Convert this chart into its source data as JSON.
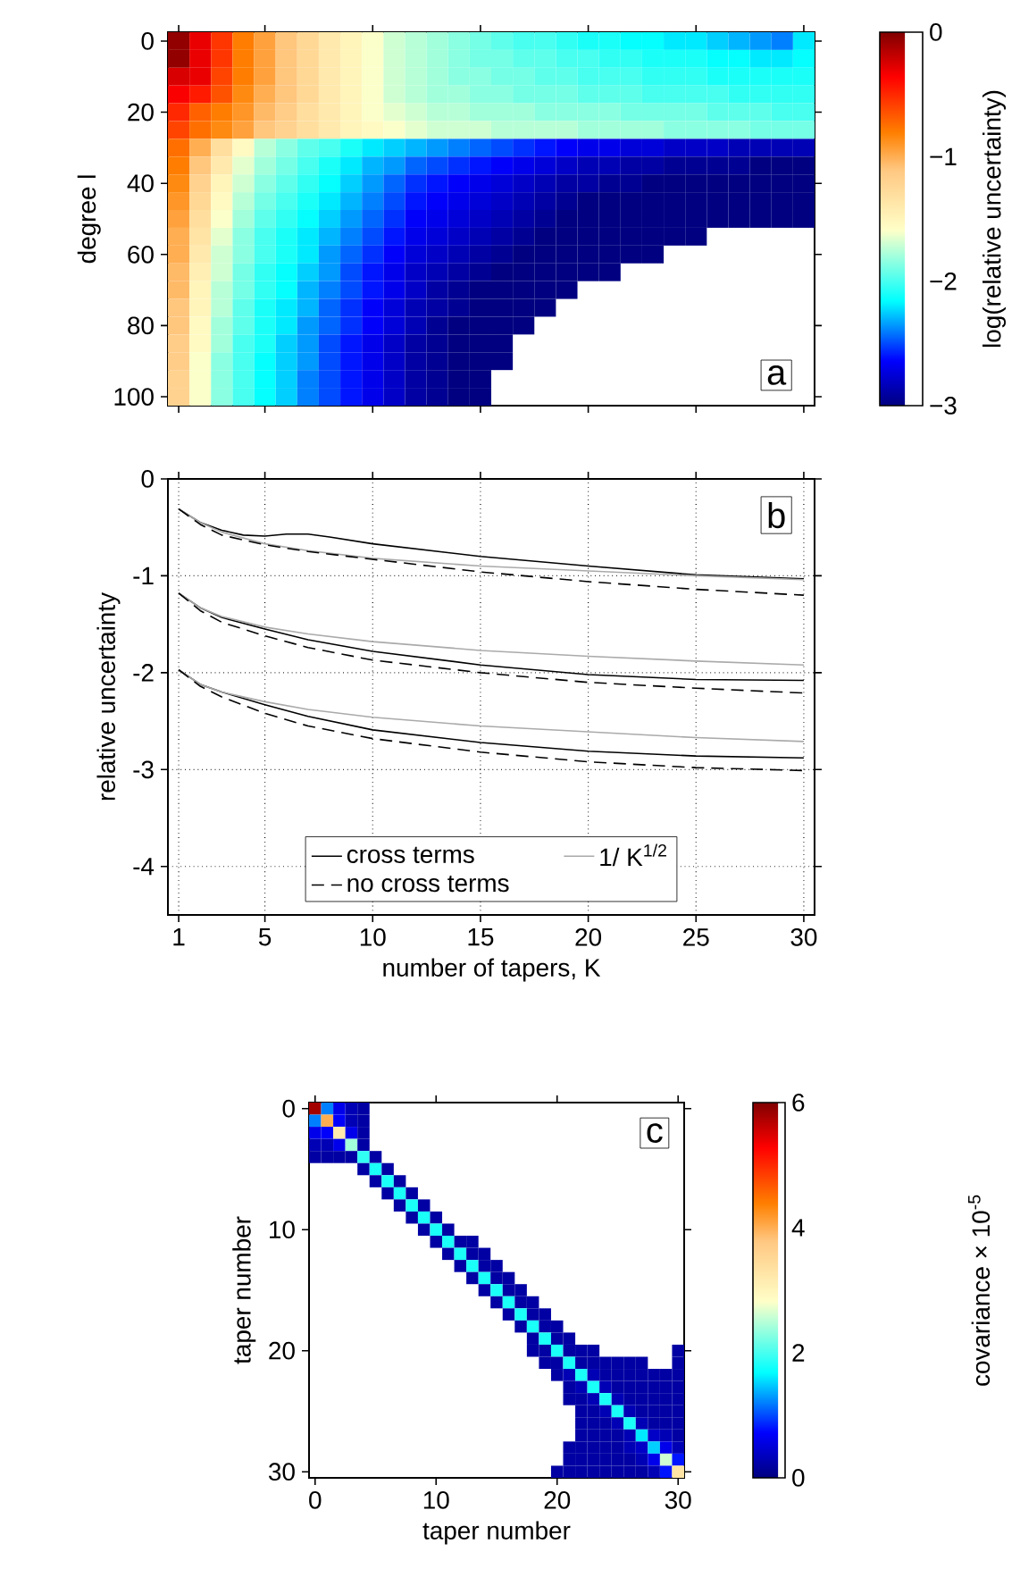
{
  "chart_data": [
    {
      "type": "heatmap",
      "ylabel": "degree l",
      "clabel": "log(relative uncertainty)",
      "categories": [
        "1",
        null,
        null,
        null,
        "5",
        null,
        null,
        null,
        null,
        "10",
        null,
        null,
        null,
        null,
        "15",
        null,
        null,
        null,
        null,
        "20",
        null,
        null,
        null,
        null,
        "25",
        null,
        null,
        null,
        null,
        "30"
      ],
      "y_categories": [
        "0",
        null,
        null,
        null,
        "20",
        null,
        null,
        null,
        "40",
        null,
        null,
        null,
        "60",
        null,
        null,
        null,
        "80",
        null,
        null,
        null,
        "100"
      ],
      "tick_labels": "y",
      "clim": [
        -3,
        0
      ],
      "cticks": [
        {
          "value": -3,
          "label": "−3"
        },
        {
          "value": -2,
          "label": "−2"
        },
        {
          "value": -1,
          "label": "−1"
        },
        0
      ],
      "annotations": [
        "a"
      ],
      "cells": [
        [
          -0.05,
          -0.3,
          -0.55,
          -0.8,
          -0.95,
          -1.1,
          -1.25,
          -1.4,
          -1.5,
          -1.6,
          -1.7,
          -1.75,
          -1.8,
          -1.85,
          -1.9,
          -1.95,
          -2.0,
          -2.0,
          -2.05,
          -2.1,
          -2.1,
          -2.15,
          -2.15,
          -2.2,
          -2.2,
          -2.25,
          -2.3,
          -2.35,
          -2.4,
          -2.2
        ],
        [
          -0.05,
          -0.3,
          -0.55,
          -0.8,
          -0.95,
          -1.1,
          -1.25,
          -1.4,
          -1.5,
          -1.6,
          -1.7,
          -1.75,
          -1.8,
          -1.85,
          -1.9,
          -1.9,
          -1.95,
          -1.95,
          -2.0,
          -2.0,
          -2.05,
          -2.05,
          -2.1,
          -2.1,
          -2.1,
          -2.15,
          -2.15,
          -2.2,
          -2.2,
          -2.15
        ],
        [
          -0.25,
          -0.3,
          -0.6,
          -0.8,
          -0.95,
          -1.1,
          -1.25,
          -1.4,
          -1.5,
          -1.6,
          -1.7,
          -1.75,
          -1.8,
          -1.85,
          -1.85,
          -1.9,
          -1.9,
          -1.95,
          -1.95,
          -2.0,
          -2.0,
          -2.0,
          -2.05,
          -2.05,
          -2.05,
          -2.1,
          -2.1,
          -2.1,
          -2.1,
          -2.1
        ],
        [
          -0.35,
          -0.45,
          -0.65,
          -0.85,
          -1.0,
          -1.1,
          -1.25,
          -1.4,
          -1.5,
          -1.6,
          -1.7,
          -1.75,
          -1.8,
          -1.8,
          -1.85,
          -1.85,
          -1.9,
          -1.9,
          -1.9,
          -1.95,
          -1.95,
          -1.95,
          -2.0,
          -2.0,
          -2.0,
          -2.0,
          -2.05,
          -2.05,
          -2.05,
          -2.05
        ],
        [
          -0.5,
          -0.7,
          -0.8,
          -0.9,
          -1.05,
          -1.15,
          -1.3,
          -1.4,
          -1.5,
          -1.6,
          -1.65,
          -1.7,
          -1.75,
          -1.75,
          -1.8,
          -1.8,
          -1.8,
          -1.85,
          -1.85,
          -1.85,
          -1.85,
          -1.9,
          -1.9,
          -1.9,
          -1.9,
          -1.95,
          -1.95,
          -1.95,
          -2.0,
          -2.0
        ],
        [
          -0.6,
          -0.75,
          -0.85,
          -0.95,
          -1.1,
          -1.2,
          -1.3,
          -1.4,
          -1.5,
          -1.55,
          -1.6,
          -1.65,
          -1.7,
          -1.7,
          -1.7,
          -1.75,
          -1.75,
          -1.75,
          -1.75,
          -1.8,
          -1.8,
          -1.8,
          -1.8,
          -1.85,
          -1.85,
          -1.85,
          -1.85,
          -1.9,
          -1.9,
          -1.9
        ],
        [
          -0.75,
          -1.0,
          -1.3,
          -1.55,
          -1.75,
          -1.85,
          -1.95,
          -2.0,
          -2.1,
          -2.2,
          -2.25,
          -2.3,
          -2.35,
          -2.4,
          -2.45,
          -2.5,
          -2.55,
          -2.6,
          -2.65,
          -2.7,
          -2.7,
          -2.75,
          -2.75,
          -2.8,
          -2.8,
          -2.8,
          -2.85,
          -2.85,
          -2.85,
          -2.85
        ],
        [
          -0.8,
          -1.1,
          -1.4,
          -1.65,
          -1.8,
          -1.9,
          -2.0,
          -2.1,
          -2.2,
          -2.3,
          -2.35,
          -2.45,
          -2.5,
          -2.55,
          -2.6,
          -2.65,
          -2.7,
          -2.75,
          -2.8,
          -2.85,
          -2.85,
          -2.9,
          -2.9,
          -2.95,
          -2.95,
          -2.95,
          -2.95,
          -3,
          -3,
          -3
        ],
        [
          -0.85,
          -1.2,
          -1.5,
          -1.7,
          -1.85,
          -1.95,
          -2.05,
          -2.15,
          -2.25,
          -2.35,
          -2.45,
          -2.55,
          -2.6,
          -2.65,
          -2.7,
          -2.75,
          -2.8,
          -2.85,
          -2.9,
          -2.9,
          -2.95,
          -2.95,
          -3,
          -3,
          -3,
          -3,
          -3,
          -3,
          -3,
          -3
        ],
        [
          -0.9,
          -1.25,
          -1.55,
          -1.75,
          -1.9,
          -2.0,
          -2.1,
          -2.2,
          -2.3,
          -2.4,
          -2.5,
          -2.6,
          -2.65,
          -2.7,
          -2.75,
          -2.8,
          -2.85,
          -2.9,
          -2.95,
          -3,
          -3,
          -3,
          -3,
          -3,
          -3,
          -3,
          -3,
          -3,
          -3,
          -3
        ],
        [
          -0.95,
          -1.3,
          -1.6,
          -1.8,
          -1.95,
          -2.05,
          -2.15,
          -2.25,
          -2.35,
          -2.45,
          -2.55,
          -2.65,
          -2.7,
          -2.75,
          -2.8,
          -2.85,
          -2.9,
          -2.95,
          -3,
          -3,
          -3,
          -3,
          -3,
          -3,
          -3,
          -3,
          -3,
          -3,
          -3,
          -3
        ],
        [
          -1.0,
          -1.35,
          -1.65,
          -1.85,
          -2.0,
          -2.1,
          -2.2,
          -2.3,
          -2.4,
          -2.5,
          -2.6,
          -2.7,
          -2.75,
          -2.8,
          -2.85,
          -2.9,
          -2.95,
          -3,
          -3,
          -3,
          -3,
          -3,
          -3,
          -3,
          -3,
          null,
          null,
          null,
          null,
          null
        ],
        [
          -1.0,
          -1.4,
          -1.7,
          -1.85,
          -2.0,
          -2.1,
          -2.2,
          -2.35,
          -2.45,
          -2.55,
          -2.65,
          -2.75,
          -2.8,
          -2.85,
          -2.9,
          -2.95,
          -3,
          -3,
          -3,
          -3,
          -3,
          -3,
          -3,
          null,
          null,
          null,
          null,
          null,
          null,
          null
        ],
        [
          -1.05,
          -1.45,
          -1.7,
          -1.9,
          -2.05,
          -2.15,
          -2.25,
          -2.35,
          -2.5,
          -2.6,
          -2.7,
          -2.8,
          -2.85,
          -2.9,
          -2.95,
          -3,
          -3,
          -3,
          -3,
          -3,
          -3,
          null,
          null,
          null,
          null,
          null,
          null,
          null,
          null,
          null
        ],
        [
          -1.05,
          -1.5,
          -1.75,
          -1.9,
          -2.05,
          -2.15,
          -2.3,
          -2.4,
          -2.5,
          -2.6,
          -2.7,
          -2.8,
          -2.9,
          -2.95,
          -3,
          -3,
          -3,
          -3,
          -3,
          null,
          null,
          null,
          null,
          null,
          null,
          null,
          null,
          null,
          null,
          null
        ],
        [
          -1.1,
          -1.5,
          -1.75,
          -1.95,
          -2.1,
          -2.2,
          -2.3,
          -2.45,
          -2.55,
          -2.65,
          -2.75,
          -2.85,
          -2.9,
          -2.95,
          -3,
          -3,
          -3,
          -3,
          null,
          null,
          null,
          null,
          null,
          null,
          null,
          null,
          null,
          null,
          null,
          null
        ],
        [
          -1.1,
          -1.55,
          -1.8,
          -1.95,
          -2.1,
          -2.2,
          -2.35,
          -2.45,
          -2.55,
          -2.65,
          -2.75,
          -2.85,
          -2.95,
          -3,
          -3,
          -3,
          -3,
          null,
          null,
          null,
          null,
          null,
          null,
          null,
          null,
          null,
          null,
          null,
          null,
          null
        ],
        [
          -1.15,
          -1.55,
          -1.8,
          -2.0,
          -2.1,
          -2.25,
          -2.35,
          -2.5,
          -2.6,
          -2.7,
          -2.8,
          -2.9,
          -2.95,
          -3,
          -3,
          -3,
          null,
          null,
          null,
          null,
          null,
          null,
          null,
          null,
          null,
          null,
          null,
          null,
          null,
          null
        ],
        [
          -1.15,
          -1.6,
          -1.85,
          -2.0,
          -2.15,
          -2.25,
          -2.35,
          -2.5,
          -2.6,
          -2.7,
          -2.8,
          -2.9,
          -2.95,
          -3,
          -3,
          -3,
          null,
          null,
          null,
          null,
          null,
          null,
          null,
          null,
          null,
          null,
          null,
          null,
          null,
          null
        ],
        [
          -1.2,
          -1.6,
          -1.85,
          -2.0,
          -2.15,
          -2.25,
          -2.4,
          -2.5,
          -2.6,
          -2.7,
          -2.8,
          -2.9,
          -2.95,
          -3,
          -3,
          null,
          null,
          null,
          null,
          null,
          null,
          null,
          null,
          null,
          null,
          null,
          null,
          null,
          null,
          null
        ],
        [
          -1.2,
          -1.6,
          -1.85,
          -2.0,
          -2.15,
          -2.25,
          -2.4,
          -2.5,
          -2.6,
          -2.7,
          -2.8,
          -2.9,
          -2.95,
          -3,
          -3,
          null,
          null,
          null,
          null,
          null,
          null,
          null,
          null,
          null,
          null,
          null,
          null,
          null,
          null,
          null
        ]
      ]
    },
    {
      "type": "line",
      "xlabel": "number of tapers, K",
      "ylabel": "relative uncertainty",
      "xlim": [
        0.5,
        30.5
      ],
      "ylim": [
        -4.5,
        0
      ],
      "xticks": [
        1,
        5,
        10,
        15,
        20,
        25,
        30
      ],
      "yticks": [
        -4,
        -3,
        -2,
        -1,
        0
      ],
      "grid": true,
      "legend": "bottom",
      "annotations": [
        "b"
      ],
      "x": [
        1,
        2,
        3,
        5,
        7,
        10,
        15,
        20,
        25,
        30
      ],
      "series": [
        {
          "name": "cross terms",
          "color": "#000000",
          "line_style": "solid",
          "x": [
            1,
            2,
            3,
            4,
            5,
            6,
            7,
            8,
            10,
            15,
            20,
            25,
            30
          ],
          "values": [
            -0.31,
            -0.45,
            -0.53,
            -0.58,
            -0.59,
            -0.57,
            -0.57,
            -0.6,
            -0.67,
            -0.8,
            -0.9,
            -0.99,
            -1.03
          ]
        },
        {
          "name": "1/ K$^{1/2}$",
          "color": "#aaaaaa",
          "line_style": "solid",
          "values": [
            -0.31,
            -0.45,
            -0.55,
            -0.67,
            -0.74,
            -0.82,
            -0.9,
            -0.95,
            -1.0,
            -1.04
          ]
        },
        {
          "name": "no cross terms",
          "color": "#000000",
          "line_style": "dashed",
          "values": [
            -0.31,
            -0.47,
            -0.58,
            -0.68,
            -0.75,
            -0.83,
            -0.96,
            -1.06,
            -1.14,
            -1.2
          ]
        },
        {
          "color": "#000000",
          "line_style": "solid",
          "values": [
            -1.18,
            -1.33,
            -1.43,
            -1.55,
            -1.66,
            -1.78,
            -1.92,
            -2.02,
            -2.07,
            -2.08
          ]
        },
        {
          "color": "#aaaaaa",
          "line_style": "solid",
          "values": [
            -1.18,
            -1.33,
            -1.42,
            -1.53,
            -1.6,
            -1.68,
            -1.77,
            -1.83,
            -1.88,
            -1.92
          ]
        },
        {
          "color": "#000000",
          "line_style": "dashed",
          "values": [
            -1.18,
            -1.36,
            -1.48,
            -1.62,
            -1.74,
            -1.87,
            -2.0,
            -2.1,
            -2.16,
            -2.21
          ]
        },
        {
          "color": "#000000",
          "line_style": "solid",
          "values": [
            -1.97,
            -2.12,
            -2.2,
            -2.33,
            -2.45,
            -2.59,
            -2.72,
            -2.81,
            -2.86,
            -2.88
          ]
        },
        {
          "color": "#aaaaaa",
          "line_style": "solid",
          "values": [
            -1.97,
            -2.12,
            -2.2,
            -2.3,
            -2.38,
            -2.46,
            -2.55,
            -2.61,
            -2.67,
            -2.71
          ]
        },
        {
          "color": "#000000",
          "line_style": "dashed",
          "values": [
            -1.97,
            -2.14,
            -2.25,
            -2.42,
            -2.55,
            -2.68,
            -2.82,
            -2.92,
            -2.98,
            -3.01
          ]
        }
      ]
    },
    {
      "type": "heatmap",
      "xlabel": "taper number",
      "ylabel": "taper number",
      "clabel": "covariance × 10$^{-5}$",
      "categories": [
        "0",
        null,
        null,
        null,
        null,
        null,
        null,
        null,
        null,
        null,
        "10",
        null,
        null,
        null,
        null,
        null,
        null,
        null,
        null,
        null,
        "20",
        null,
        null,
        null,
        null,
        null,
        null,
        null,
        null,
        null,
        "30"
      ],
      "y_categories": [
        "0",
        null,
        null,
        null,
        null,
        null,
        null,
        null,
        null,
        null,
        "10",
        null,
        null,
        null,
        null,
        null,
        null,
        null,
        null,
        null,
        "20",
        null,
        null,
        null,
        null,
        null,
        null,
        null,
        null,
        null,
        "30"
      ],
      "clim": [
        0,
        6
      ],
      "cticks": [
        0,
        2,
        4,
        6
      ],
      "annotations": [
        "c"
      ],
      "cells": [
        [
          5.8,
          1.2,
          0.6,
          0.3,
          0.2,
          null,
          null,
          null,
          null,
          null,
          null,
          null,
          null,
          null,
          null,
          null,
          null,
          null,
          null,
          null,
          null,
          null,
          null,
          null,
          null,
          null,
          null,
          null,
          null,
          null,
          null
        ],
        [
          1.2,
          4.0,
          0.7,
          0.3,
          0.2,
          null,
          null,
          null,
          null,
          null,
          null,
          null,
          null,
          null,
          null,
          null,
          null,
          null,
          null,
          null,
          null,
          null,
          null,
          null,
          null,
          null,
          null,
          null,
          null,
          null,
          null
        ],
        [
          0.6,
          0.7,
          3.2,
          0.6,
          0.2,
          null,
          null,
          null,
          null,
          null,
          null,
          null,
          null,
          null,
          null,
          null,
          null,
          null,
          null,
          null,
          null,
          null,
          null,
          null,
          null,
          null,
          null,
          null,
          null,
          null,
          null
        ],
        [
          0.3,
          0.3,
          0.6,
          2.4,
          0.2,
          null,
          null,
          null,
          null,
          null,
          null,
          null,
          null,
          null,
          null,
          null,
          null,
          null,
          null,
          null,
          null,
          null,
          null,
          null,
          null,
          null,
          null,
          null,
          null,
          null,
          null
        ],
        [
          0.2,
          0.2,
          0.2,
          0.2,
          1.9,
          0.2,
          null,
          null,
          null,
          null,
          null,
          null,
          null,
          null,
          null,
          null,
          null,
          null,
          null,
          null,
          null,
          null,
          null,
          null,
          null,
          null,
          null,
          null,
          null,
          null,
          null
        ],
        [
          null,
          null,
          null,
          null,
          0.2,
          1.8,
          0.2,
          null,
          null,
          null,
          null,
          null,
          null,
          null,
          null,
          null,
          null,
          null,
          null,
          null,
          null,
          null,
          null,
          null,
          null,
          null,
          null,
          null,
          null,
          null,
          null
        ],
        [
          null,
          null,
          null,
          null,
          null,
          0.2,
          1.8,
          0.2,
          null,
          null,
          null,
          null,
          null,
          null,
          null,
          null,
          null,
          null,
          null,
          null,
          null,
          null,
          null,
          null,
          null,
          null,
          null,
          null,
          null,
          null,
          null
        ],
        [
          null,
          null,
          null,
          null,
          null,
          null,
          0.2,
          1.8,
          0.2,
          null,
          null,
          null,
          null,
          null,
          null,
          null,
          null,
          null,
          null,
          null,
          null,
          null,
          null,
          null,
          null,
          null,
          null,
          null,
          null,
          null,
          null
        ],
        [
          null,
          null,
          null,
          null,
          null,
          null,
          null,
          0.2,
          1.8,
          0.2,
          null,
          null,
          null,
          null,
          null,
          null,
          null,
          null,
          null,
          null,
          null,
          null,
          null,
          null,
          null,
          null,
          null,
          null,
          null,
          null,
          null
        ],
        [
          null,
          null,
          null,
          null,
          null,
          null,
          null,
          null,
          0.2,
          1.8,
          0.2,
          null,
          null,
          null,
          null,
          null,
          null,
          null,
          null,
          null,
          null,
          null,
          null,
          null,
          null,
          null,
          null,
          null,
          null,
          null,
          null
        ],
        [
          null,
          null,
          null,
          null,
          null,
          null,
          null,
          null,
          null,
          0.2,
          1.8,
          0.2,
          null,
          null,
          null,
          null,
          null,
          null,
          null,
          null,
          null,
          null,
          null,
          null,
          null,
          null,
          null,
          null,
          null,
          null,
          null
        ],
        [
          null,
          null,
          null,
          null,
          null,
          null,
          null,
          null,
          null,
          null,
          0.2,
          1.8,
          0.2,
          0.2,
          null,
          null,
          null,
          null,
          null,
          null,
          null,
          null,
          null,
          null,
          null,
          null,
          null,
          null,
          null,
          null,
          null
        ],
        [
          null,
          null,
          null,
          null,
          null,
          null,
          null,
          null,
          null,
          null,
          null,
          0.2,
          1.8,
          0.2,
          0.2,
          null,
          null,
          null,
          null,
          null,
          null,
          null,
          null,
          null,
          null,
          null,
          null,
          null,
          null,
          null,
          null
        ],
        [
          null,
          null,
          null,
          null,
          null,
          null,
          null,
          null,
          null,
          null,
          null,
          null,
          0.2,
          1.8,
          0.2,
          0.2,
          null,
          null,
          null,
          null,
          null,
          null,
          null,
          null,
          null,
          null,
          null,
          null,
          null,
          null,
          null
        ],
        [
          null,
          null,
          null,
          null,
          null,
          null,
          null,
          null,
          null,
          null,
          null,
          null,
          null,
          0.2,
          1.8,
          0.2,
          0.2,
          null,
          null,
          null,
          null,
          null,
          null,
          null,
          null,
          null,
          null,
          null,
          null,
          null,
          null
        ],
        [
          null,
          null,
          null,
          null,
          null,
          null,
          null,
          null,
          null,
          null,
          null,
          null,
          null,
          null,
          0.2,
          1.8,
          0.2,
          0.2,
          null,
          null,
          null,
          null,
          null,
          null,
          null,
          null,
          null,
          null,
          null,
          null,
          null
        ],
        [
          null,
          null,
          null,
          null,
          null,
          null,
          null,
          null,
          null,
          null,
          null,
          null,
          null,
          null,
          null,
          0.2,
          1.8,
          0.2,
          0.2,
          null,
          null,
          null,
          null,
          null,
          null,
          null,
          null,
          null,
          null,
          null,
          null
        ],
        [
          null,
          null,
          null,
          null,
          null,
          null,
          null,
          null,
          null,
          null,
          null,
          null,
          null,
          null,
          null,
          null,
          0.2,
          1.8,
          0.2,
          0.2,
          null,
          null,
          null,
          null,
          null,
          null,
          null,
          null,
          null,
          null,
          null
        ],
        [
          null,
          null,
          null,
          null,
          null,
          null,
          null,
          null,
          null,
          null,
          null,
          null,
          null,
          null,
          null,
          null,
          null,
          0.2,
          1.8,
          0.2,
          0.2,
          null,
          null,
          null,
          null,
          null,
          null,
          null,
          null,
          null,
          null
        ],
        [
          null,
          null,
          null,
          null,
          null,
          null,
          null,
          null,
          null,
          null,
          null,
          null,
          null,
          null,
          null,
          null,
          null,
          null,
          0.2,
          1.8,
          0.2,
          0.2,
          null,
          null,
          null,
          null,
          null,
          null,
          null,
          null,
          null
        ],
        [
          null,
          null,
          null,
          null,
          null,
          null,
          null,
          null,
          null,
          null,
          null,
          null,
          null,
          null,
          null,
          null,
          null,
          null,
          0.2,
          0.2,
          1.8,
          0.2,
          0.2,
          0.2,
          null,
          null,
          null,
          null,
          null,
          null,
          0.2
        ],
        [
          null,
          null,
          null,
          null,
          null,
          null,
          null,
          null,
          null,
          null,
          null,
          null,
          null,
          null,
          null,
          null,
          null,
          null,
          null,
          0.2,
          0.2,
          1.8,
          0.2,
          0.2,
          0.2,
          0.2,
          0.2,
          0.2,
          null,
          null,
          0.2
        ],
        [
          null,
          null,
          null,
          null,
          null,
          null,
          null,
          null,
          null,
          null,
          null,
          null,
          null,
          null,
          null,
          null,
          null,
          null,
          null,
          null,
          0.2,
          0.3,
          1.8,
          0.3,
          0.2,
          0.2,
          0.2,
          0.2,
          0.2,
          0.2,
          0.2
        ],
        [
          null,
          null,
          null,
          null,
          null,
          null,
          null,
          null,
          null,
          null,
          null,
          null,
          null,
          null,
          null,
          null,
          null,
          null,
          null,
          null,
          null,
          0.2,
          0.3,
          1.8,
          0.3,
          0.2,
          0.2,
          0.2,
          0.2,
          0.2,
          0.2
        ],
        [
          null,
          null,
          null,
          null,
          null,
          null,
          null,
          null,
          null,
          null,
          null,
          null,
          null,
          null,
          null,
          null,
          null,
          null,
          null,
          null,
          null,
          0.2,
          0.2,
          0.3,
          1.8,
          0.3,
          0.2,
          0.2,
          0.2,
          0.2,
          0.2
        ],
        [
          null,
          null,
          null,
          null,
          null,
          null,
          null,
          null,
          null,
          null,
          null,
          null,
          null,
          null,
          null,
          null,
          null,
          null,
          null,
          null,
          null,
          null,
          0.2,
          0.2,
          0.3,
          1.8,
          0.3,
          0.2,
          0.2,
          0.2,
          0.2
        ],
        [
          null,
          null,
          null,
          null,
          null,
          null,
          null,
          null,
          null,
          null,
          null,
          null,
          null,
          null,
          null,
          null,
          null,
          null,
          null,
          null,
          null,
          null,
          0.2,
          0.2,
          0.2,
          0.3,
          1.8,
          0.3,
          0.2,
          0.2,
          0.2
        ],
        [
          null,
          null,
          null,
          null,
          null,
          null,
          null,
          null,
          null,
          null,
          null,
          null,
          null,
          null,
          null,
          null,
          null,
          null,
          null,
          null,
          null,
          null,
          0.2,
          0.2,
          0.2,
          0.2,
          0.3,
          1.6,
          0.4,
          0.3,
          0.2
        ],
        [
          null,
          null,
          null,
          null,
          null,
          null,
          null,
          null,
          null,
          null,
          null,
          null,
          null,
          null,
          null,
          null,
          null,
          null,
          null,
          null,
          null,
          0.2,
          0.2,
          0.2,
          0.2,
          0.2,
          0.3,
          0.4,
          1.5,
          0.6,
          0.3
        ],
        [
          null,
          null,
          null,
          null,
          null,
          null,
          null,
          null,
          null,
          null,
          null,
          null,
          null,
          null,
          null,
          null,
          null,
          null,
          null,
          null,
          null,
          0.2,
          0.2,
          0.2,
          0.2,
          0.2,
          0.2,
          0.3,
          0.6,
          2.6,
          0.8
        ],
        [
          null,
          null,
          null,
          null,
          null,
          null,
          null,
          null,
          null,
          null,
          null,
          null,
          null,
          null,
          null,
          null,
          null,
          null,
          null,
          null,
          0.2,
          0.2,
          0.2,
          0.2,
          0.2,
          0.2,
          0.2,
          0.2,
          0.3,
          0.8,
          3.3
        ]
      ]
    }
  ]
}
